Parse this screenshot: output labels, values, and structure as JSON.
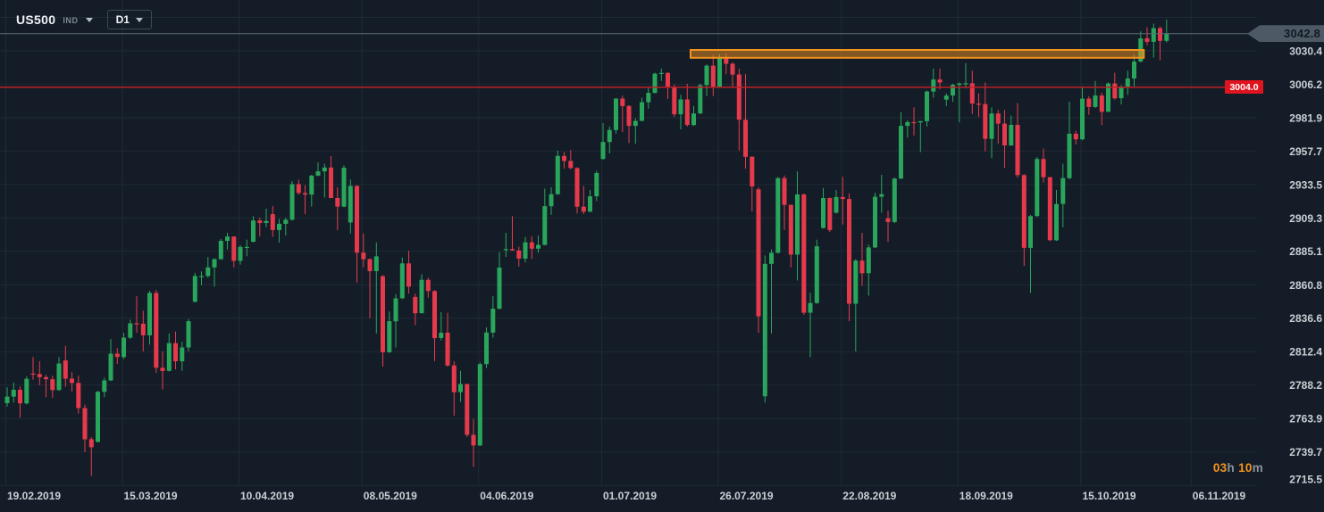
{
  "toolbar": {
    "symbol": "US500",
    "instrument_type": "IND",
    "timeframe": "D1"
  },
  "price_axis": {
    "current_price_label": "3042.8",
    "alert_price_label": "3004.0"
  },
  "countdown": {
    "hours": "03",
    "hours_unit": "h ",
    "minutes": "10",
    "minutes_unit": "m"
  },
  "colors": {
    "background": "#141d27",
    "grid": "#1f2a35",
    "up": "#29a65c",
    "down": "#e63a4c",
    "accent_orange": "#f2921e",
    "alert_red": "#bf2026",
    "current_price_grey": "#5c6a77",
    "badge_red": "#e0141f",
    "badge_grey": "#4d5964",
    "axis_text": "#c9cfd5",
    "countdown_orange": "#f5941f",
    "countdown_unit_grey": "#8b949d"
  },
  "chart_data": {
    "type": "candlestick",
    "symbol": "US500",
    "timeframe": "D1",
    "first_candle_date": "19.02.2019",
    "current_price": 3042.8,
    "alert_line": {
      "price": 3004.0
    },
    "resistance_zone": {
      "price_top": 3031.0,
      "price_bottom": 3025.3,
      "from_index": 106,
      "to_index": 175
    },
    "ylim": [
      2703,
      3067
    ],
    "price_ticks": [
      3030.4,
      3006.2,
      2981.9,
      2957.7,
      2933.5,
      2909.3,
      2885.1,
      2860.8,
      2836.6,
      2812.4,
      2788.2,
      2763.9,
      2739.7,
      2715.5
    ],
    "gridline_prices": [
      3054.6,
      3030.4,
      3006.2,
      2981.9,
      2957.7,
      2933.5,
      2909.3,
      2885.1,
      2860.8,
      2836.6,
      2812.4,
      2788.2,
      2763.9,
      2739.7,
      2715.5
    ],
    "time_ticks": [
      {
        "label": "19.02.2019",
        "index": 0
      },
      {
        "label": "15.03.2019",
        "index": 18
      },
      {
        "label": "10.04.2019",
        "index": 36
      },
      {
        "label": "08.05.2019",
        "index": 55
      },
      {
        "label": "04.06.2019",
        "index": 73
      },
      {
        "label": "01.07.2019",
        "index": 92
      },
      {
        "label": "26.07.2019",
        "index": 110
      },
      {
        "label": "22.08.2019",
        "index": 129
      },
      {
        "label": "18.09.2019",
        "index": 147
      },
      {
        "label": "15.10.2019",
        "index": 166
      },
      {
        "label": "06.11.2019",
        "index": 183
      }
    ],
    "candles": [
      [
        2775.0,
        2786.5,
        2772.5,
        2779.8
      ],
      [
        2779.8,
        2790.0,
        2775.5,
        2784.7
      ],
      [
        2784.7,
        2787.0,
        2764.5,
        2774.9
      ],
      [
        2774.9,
        2794.5,
        2774.0,
        2792.7
      ],
      [
        2796.5,
        2808.5,
        2792.0,
        2796.1
      ],
      [
        2796.1,
        2805.5,
        2788.0,
        2793.9
      ],
      [
        2793.9,
        2795.5,
        2779.5,
        2792.4
      ],
      [
        2792.4,
        2795.0,
        2779.0,
        2784.5
      ],
      [
        2784.5,
        2808.5,
        2784.0,
        2803.7
      ],
      [
        2806.0,
        2816.5,
        2787.0,
        2792.8
      ],
      [
        2792.8,
        2797.5,
        2783.5,
        2789.7
      ],
      [
        2789.7,
        2795.0,
        2767.5,
        2771.5
      ],
      [
        2771.5,
        2774.0,
        2739.5,
        2748.9
      ],
      [
        2748.9,
        2750.5,
        2722.3,
        2743.1
      ],
      [
        2747.0,
        2784.0,
        2746.5,
        2783.3
      ],
      [
        2783.3,
        2793.5,
        2779.5,
        2791.5
      ],
      [
        2791.5,
        2821.5,
        2791.0,
        2810.9
      ],
      [
        2810.9,
        2815.0,
        2803.5,
        2808.5
      ],
      [
        2808.5,
        2826.0,
        2807.0,
        2822.5
      ],
      [
        2822.5,
        2835.5,
        2821.5,
        2832.9
      ],
      [
        2832.9,
        2852.5,
        2826.0,
        2832.6
      ],
      [
        2832.6,
        2842.0,
        2812.5,
        2824.2
      ],
      [
        2824.2,
        2856.5,
        2817.5,
        2854.9
      ],
      [
        2854.9,
        2857.0,
        2797.0,
        2800.7
      ],
      [
        2800.7,
        2812.5,
        2785.0,
        2798.4
      ],
      [
        2798.4,
        2825.5,
        2798.0,
        2818.5
      ],
      [
        2818.5,
        2827.0,
        2799.5,
        2805.4
      ],
      [
        2805.4,
        2819.5,
        2798.5,
        2815.4
      ],
      [
        2815.4,
        2836.0,
        2812.5,
        2834.4
      ],
      [
        2848.5,
        2869.5,
        2848.0,
        2867.2
      ],
      [
        2867.2,
        2870.5,
        2860.5,
        2867.2
      ],
      [
        2867.2,
        2881.0,
        2866.0,
        2873.4
      ],
      [
        2873.4,
        2880.0,
        2859.5,
        2879.4
      ],
      [
        2879.4,
        2894.0,
        2879.0,
        2892.7
      ],
      [
        2892.7,
        2898.5,
        2886.5,
        2895.8
      ],
      [
        2895.8,
        2896.0,
        2873.5,
        2878.2
      ],
      [
        2878.2,
        2889.5,
        2875.5,
        2888.2
      ],
      [
        2888.2,
        2893.5,
        2881.5,
        2888.3
      ],
      [
        2892.0,
        2910.5,
        2891.5,
        2907.4
      ],
      [
        2907.4,
        2909.5,
        2896.0,
        2905.6
      ],
      [
        2905.6,
        2916.0,
        2902.5,
        2907.1
      ],
      [
        2912.0,
        2918.0,
        2895.5,
        2900.5
      ],
      [
        2900.5,
        2908.5,
        2891.5,
        2905.0
      ],
      [
        2905.0,
        2909.5,
        2896.5,
        2908.0
      ],
      [
        2908.0,
        2936.0,
        2907.5,
        2933.7
      ],
      [
        2933.7,
        2937.0,
        2926.0,
        2927.3
      ],
      [
        2927.3,
        2933.0,
        2912.0,
        2926.2
      ],
      [
        2926.2,
        2940.5,
        2917.5,
        2939.9
      ],
      [
        2939.9,
        2949.5,
        2939.5,
        2943.0
      ],
      [
        2943.0,
        2948.5,
        2924.0,
        2945.8
      ],
      [
        2945.8,
        2954.1,
        2923.5,
        2923.7
      ],
      [
        2923.7,
        2931.5,
        2900.5,
        2917.5
      ],
      [
        2917.5,
        2947.5,
        2917.0,
        2945.6
      ],
      [
        2906.0,
        2937.0,
        2898.0,
        2932.5
      ],
      [
        2932.5,
        2933.0,
        2862.5,
        2884.1
      ],
      [
        2884.1,
        2898.0,
        2873.5,
        2879.4
      ],
      [
        2879.4,
        2880.0,
        2836.5,
        2870.7
      ],
      [
        2870.7,
        2891.5,
        2825.5,
        2881.4
      ],
      [
        2867.0,
        2868.0,
        2801.5,
        2811.9
      ],
      [
        2811.9,
        2841.5,
        2811.5,
        2834.4
      ],
      [
        2834.4,
        2854.0,
        2815.5,
        2851.0
      ],
      [
        2851.0,
        2880.5,
        2850.5,
        2876.3
      ],
      [
        2876.3,
        2885.5,
        2854.5,
        2859.5
      ],
      [
        2852.0,
        2854.5,
        2831.5,
        2840.2
      ],
      [
        2840.2,
        2868.5,
        2840.0,
        2864.4
      ],
      [
        2864.4,
        2866.0,
        2851.5,
        2856.3
      ],
      [
        2856.3,
        2857.0,
        2805.5,
        2822.2
      ],
      [
        2822.2,
        2841.0,
        2820.5,
        2826.1
      ],
      [
        2826.1,
        2840.5,
        2801.5,
        2802.4
      ],
      [
        2802.4,
        2805.5,
        2766.0,
        2783.0
      ],
      [
        2783.0,
        2798.5,
        2776.0,
        2788.9
      ],
      [
        2788.9,
        2789.0,
        2750.5,
        2752.1
      ],
      [
        2752.1,
        2763.5,
        2728.8,
        2744.4
      ],
      [
        2744.4,
        2804.5,
        2744.0,
        2803.3
      ],
      [
        2803.3,
        2830.0,
        2800.5,
        2826.2
      ],
      [
        2826.2,
        2852.5,
        2822.5,
        2843.5
      ],
      [
        2843.5,
        2884.5,
        2843.0,
        2873.3
      ],
      [
        2886.0,
        2898.5,
        2881.0,
        2886.7
      ],
      [
        2886.7,
        2910.5,
        2885.5,
        2885.7
      ],
      [
        2885.7,
        2888.5,
        2874.0,
        2879.8
      ],
      [
        2879.8,
        2895.5,
        2877.0,
        2891.6
      ],
      [
        2891.6,
        2896.0,
        2879.5,
        2887.0
      ],
      [
        2887.0,
        2896.5,
        2884.0,
        2889.7
      ],
      [
        2889.7,
        2930.5,
        2889.5,
        2917.8
      ],
      [
        2917.8,
        2931.5,
        2911.5,
        2926.5
      ],
      [
        2926.5,
        2958.0,
        2926.0,
        2954.2
      ],
      [
        2954.2,
        2957.0,
        2945.0,
        2950.5
      ],
      [
        2950.5,
        2958.5,
        2944.5,
        2945.4
      ],
      [
        2945.4,
        2946.0,
        2912.5,
        2917.4
      ],
      [
        2917.4,
        2932.5,
        2912.0,
        2913.8
      ],
      [
        2913.8,
        2929.5,
        2913.5,
        2924.9
      ],
      [
        2924.9,
        2943.5,
        2921.5,
        2941.8
      ],
      [
        2952.0,
        2978.0,
        2951.5,
        2964.3
      ],
      [
        2964.3,
        2975.5,
        2956.0,
        2973.0
      ],
      [
        2973.0,
        2996.0,
        2970.5,
        2995.8
      ],
      [
        2995.8,
        2998.0,
        2971.5,
        2990.4
      ],
      [
        2990.4,
        2991.0,
        2963.5,
        2976.0
      ],
      [
        2976.0,
        2981.5,
        2963.0,
        2979.6
      ],
      [
        2979.6,
        2996.5,
        2979.5,
        2993.1
      ],
      [
        2993.1,
        3003.5,
        2988.5,
        2999.9
      ],
      [
        2999.9,
        3014.5,
        2999.5,
        3013.8
      ],
      [
        3013.8,
        3017.5,
        3008.5,
        3014.3
      ],
      [
        3014.3,
        3015.0,
        2995.5,
        3004.0
      ],
      [
        3004.0,
        3006.0,
        2982.5,
        2984.4
      ],
      [
        2984.4,
        2998.5,
        2973.5,
        2995.1
      ],
      [
        2995.1,
        3006.5,
        2975.5,
        2976.6
      ],
      [
        2976.6,
        2990.5,
        2976.0,
        2985.0
      ],
      [
        2985.0,
        3006.5,
        2984.5,
        3005.5
      ],
      [
        3005.5,
        3020.5,
        2997.5,
        3019.6
      ],
      [
        3019.6,
        3027.5,
        2997.5,
        3003.7
      ],
      [
        3003.7,
        3028.0,
        3003.5,
        3025.9
      ],
      [
        3025.9,
        3028.5,
        3013.5,
        3021.0
      ],
      [
        3021.0,
        3022.0,
        3003.5,
        3013.2
      ],
      [
        3013.2,
        3017.5,
        2958.0,
        2980.4
      ],
      [
        2980.4,
        3013.5,
        2945.0,
        2953.6
      ],
      [
        2953.6,
        2954.0,
        2914.0,
        2932.1
      ],
      [
        2930.0,
        2931.5,
        2826.0,
        2838.0
      ],
      [
        2780.0,
        2882.0,
        2775.5,
        2876.0
      ],
      [
        2876.0,
        2886.5,
        2825.5,
        2884.0
      ],
      [
        2884.0,
        2939.0,
        2883.5,
        2938.1
      ],
      [
        2938.1,
        2940.0,
        2900.5,
        2918.7
      ],
      [
        2918.7,
        2919.0,
        2873.5,
        2882.7
      ],
      [
        2882.7,
        2943.0,
        2864.0,
        2926.3
      ],
      [
        2926.3,
        2927.0,
        2839.0,
        2840.6
      ],
      [
        2840.6,
        2855.0,
        2808.5,
        2847.6
      ],
      [
        2847.6,
        2893.5,
        2847.0,
        2888.7
      ],
      [
        2902.0,
        2931.0,
        2901.5,
        2923.7
      ],
      [
        2923.7,
        2924.0,
        2899.0,
        2900.5
      ],
      [
        2913.0,
        2929.5,
        2912.5,
        2924.4
      ],
      [
        2924.4,
        2939.0,
        2904.5,
        2923.0
      ],
      [
        2923.0,
        2927.0,
        2834.5,
        2847.1
      ],
      [
        2847.1,
        2879.5,
        2812.5,
        2878.4
      ],
      [
        2878.4,
        2898.5,
        2860.0,
        2869.2
      ],
      [
        2869.2,
        2890.0,
        2853.0,
        2887.9
      ],
      [
        2887.9,
        2927.5,
        2887.5,
        2924.6
      ],
      [
        2924.6,
        2940.5,
        2913.0,
        2926.5
      ],
      [
        2909.0,
        2914.5,
        2891.9,
        2906.3
      ],
      [
        2906.3,
        2938.5,
        2905.5,
        2937.8
      ],
      [
        2937.8,
        2985.9,
        2937.5,
        2976.0
      ],
      [
        2976.0,
        2980.0,
        2967.5,
        2978.7
      ],
      [
        2978.7,
        2989.5,
        2969.0,
        2978.4
      ],
      [
        2978.4,
        2979.5,
        2957.0,
        2979.4
      ],
      [
        2979.4,
        3001.5,
        2975.5,
        3000.9
      ],
      [
        3000.9,
        3017.5,
        2996.5,
        3009.6
      ],
      [
        3009.6,
        3017.5,
        3002.5,
        3007.4
      ],
      [
        2995.0,
        2999.5,
        2990.5,
        2998.0
      ],
      [
        2998.0,
        3006.5,
        2993.5,
        3005.7
      ],
      [
        3005.7,
        3007.5,
        2978.5,
        3006.7
      ],
      [
        3006.7,
        3021.5,
        3003.0,
        3006.8
      ],
      [
        3006.8,
        3016.0,
        2984.5,
        2992.1
      ],
      [
        2992.1,
        2999.5,
        2982.5,
        2991.8
      ],
      [
        2991.8,
        3007.5,
        2957.5,
        2966.6
      ],
      [
        2966.6,
        2989.5,
        2952.5,
        2984.9
      ],
      [
        2984.9,
        2987.5,
        2963.0,
        2977.6
      ],
      [
        2977.6,
        2987.5,
        2945.5,
        2961.8
      ],
      [
        2961.8,
        2983.5,
        2961.5,
        2976.7
      ],
      [
        2976.7,
        2992.5,
        2938.5,
        2940.3
      ],
      [
        2940.3,
        2941.0,
        2874.5,
        2887.6
      ],
      [
        2887.6,
        2911.5,
        2855.0,
        2910.6
      ],
      [
        2910.6,
        2953.5,
        2910.0,
        2952.0
      ],
      [
        2952.0,
        2959.5,
        2935.0,
        2938.8
      ],
      [
        2938.8,
        2939.0,
        2892.5,
        2893.1
      ],
      [
        2893.1,
        2929.5,
        2892.5,
        2919.4
      ],
      [
        2919.4,
        2948.5,
        2902.5,
        2938.1
      ],
      [
        2938.1,
        2993.5,
        2937.5,
        2970.3
      ],
      [
        2970.3,
        2972.5,
        2962.5,
        2966.2
      ],
      [
        2966.2,
        3003.5,
        2965.5,
        2995.7
      ],
      [
        2995.7,
        2997.5,
        2984.0,
        2989.7
      ],
      [
        2989.7,
        3008.5,
        2989.0,
        2998.0
      ],
      [
        2998.0,
        3000.0,
        2976.5,
        2986.2
      ],
      [
        2986.2,
        3007.5,
        2986.0,
        3006.7
      ],
      [
        3006.7,
        3014.5,
        2995.0,
        2996.0
      ],
      [
        2996.0,
        3005.5,
        2991.5,
        3004.5
      ],
      [
        3004.5,
        3016.0,
        2998.5,
        3010.3
      ],
      [
        3010.3,
        3027.5,
        3004.5,
        3022.6
      ],
      [
        3022.6,
        3044.5,
        3022.0,
        3039.4
      ],
      [
        3039.4,
        3047.5,
        3034.5,
        3036.9
      ],
      [
        3036.9,
        3050.0,
        3025.5,
        3046.8
      ],
      [
        3046.8,
        3048.0,
        3023.5,
        3037.6
      ],
      [
        3037.6,
        3053.0,
        3036.5,
        3042.8
      ]
    ]
  }
}
